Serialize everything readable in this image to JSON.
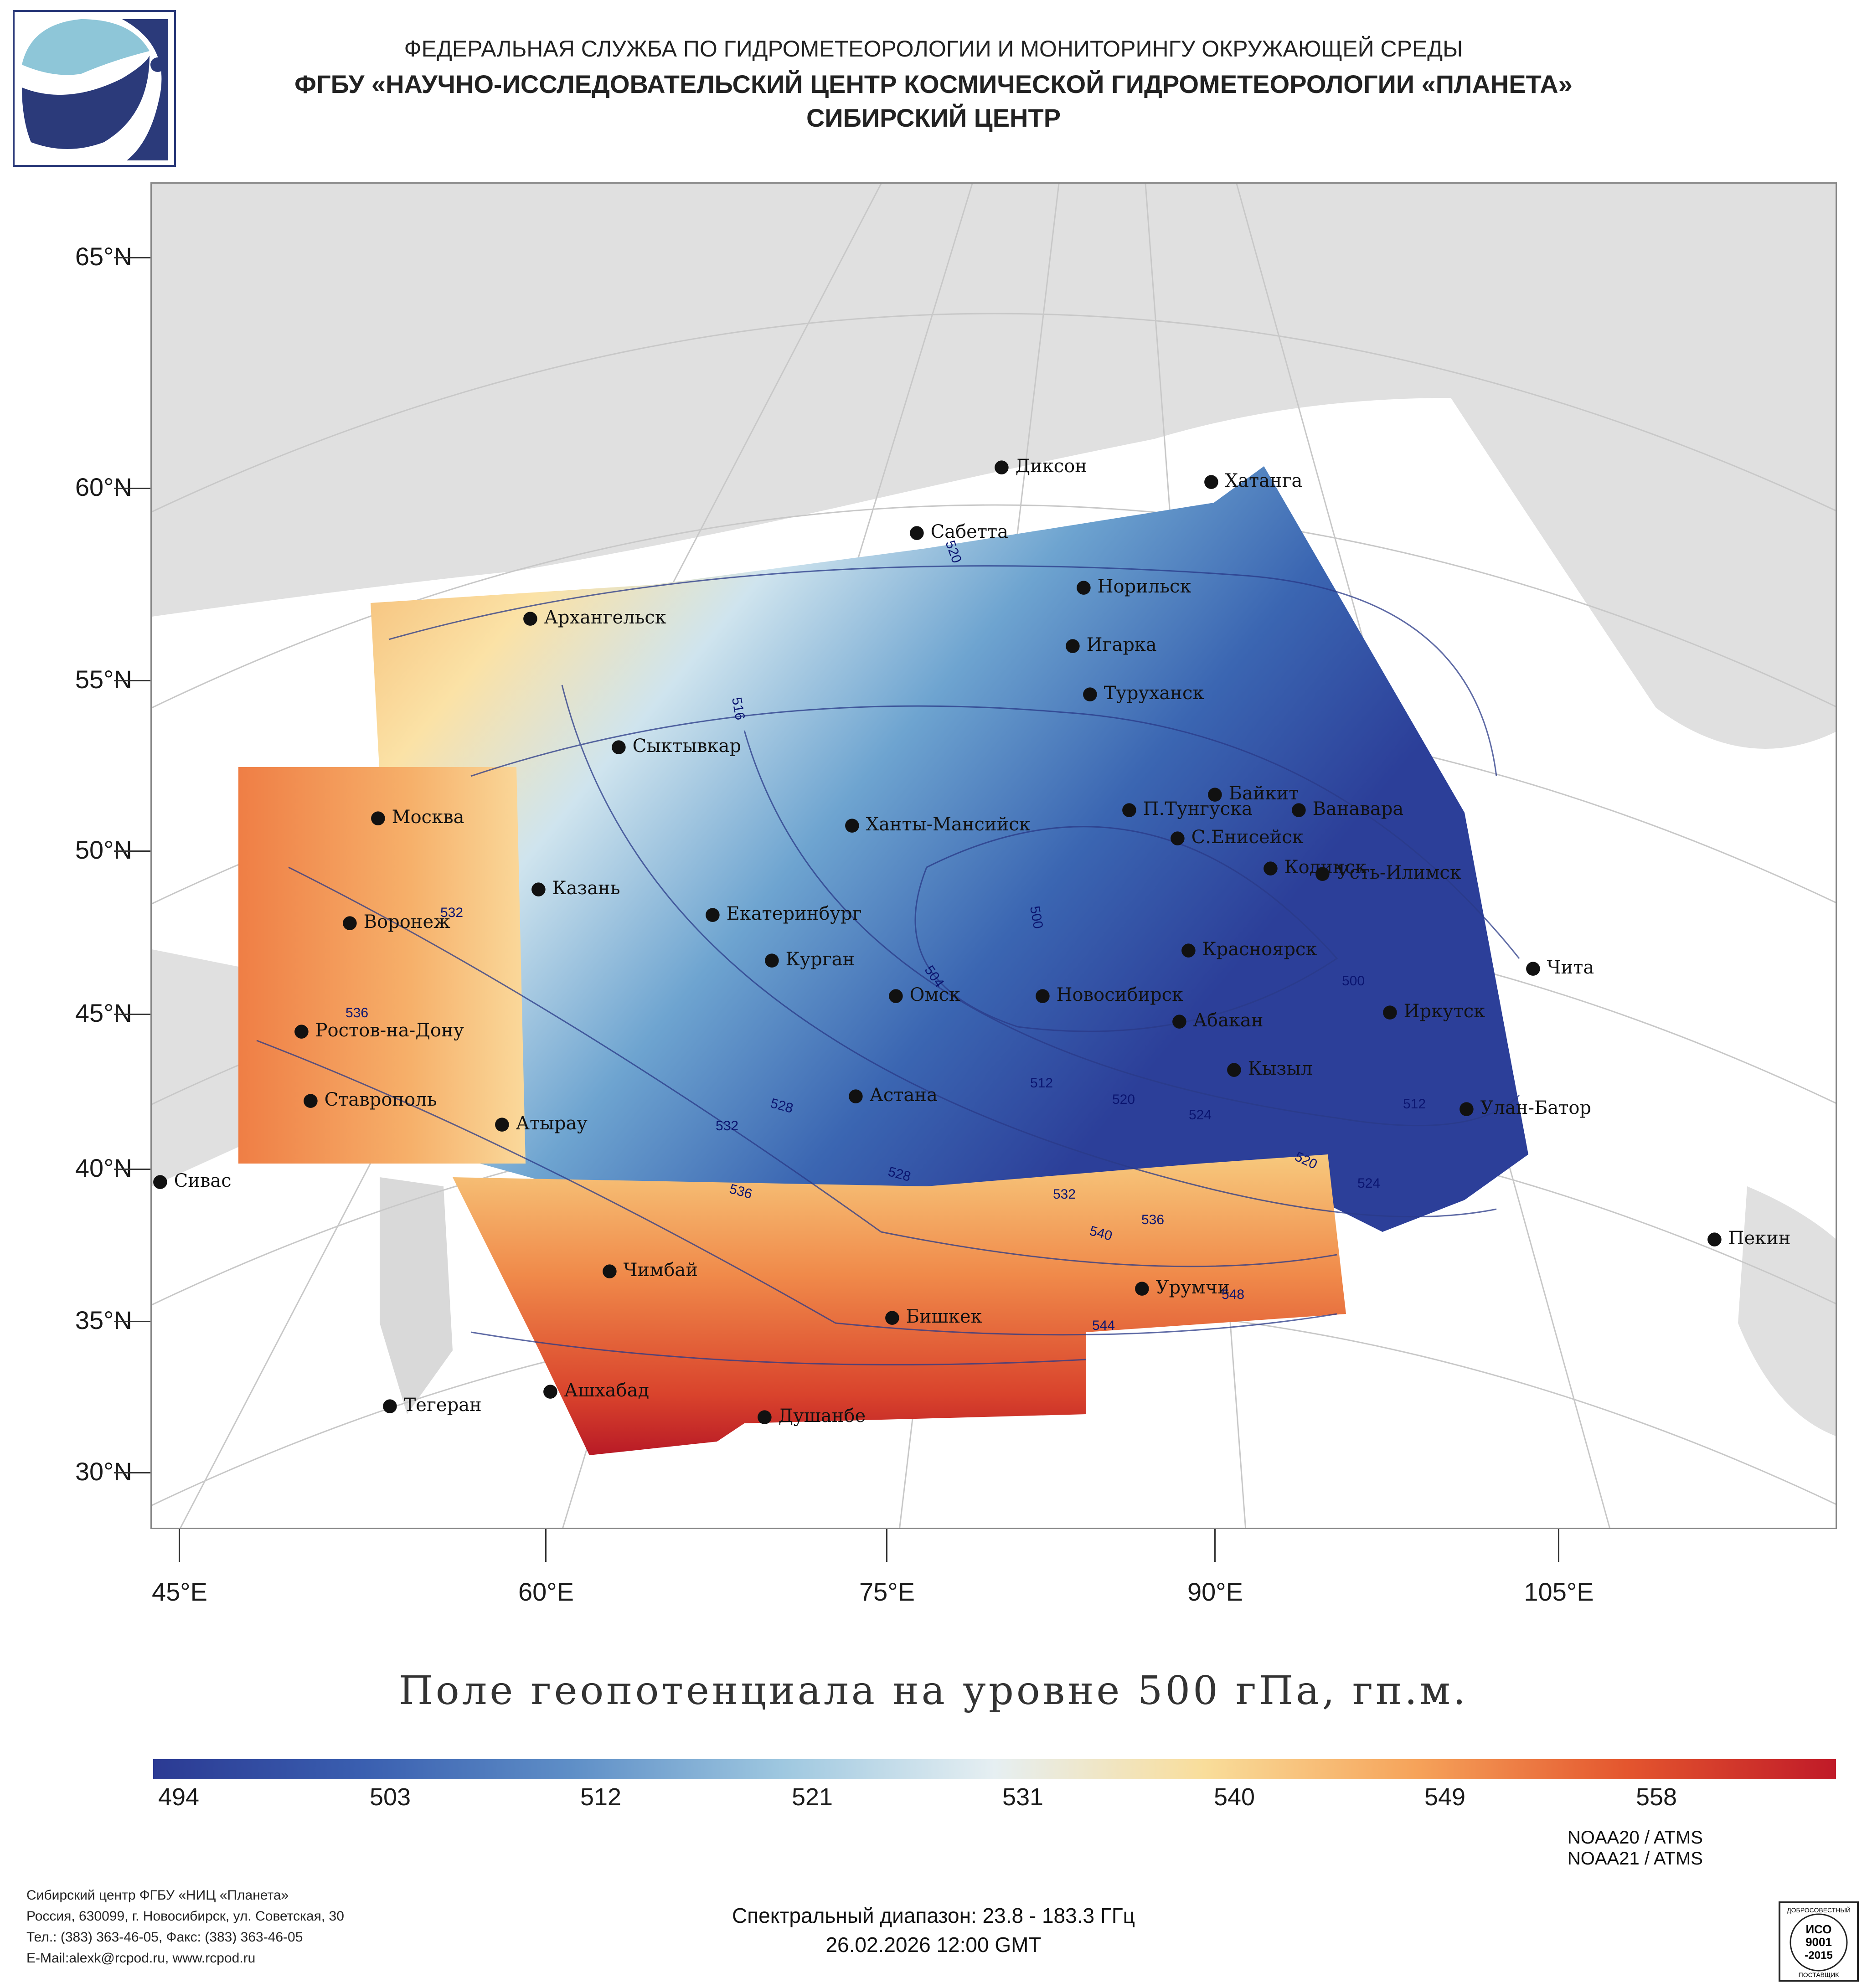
{
  "header": {
    "agency": "ФЕДЕРАЛЬНАЯ СЛУЖБА ПО ГИДРОМЕТЕОРОЛОГИИ И МОНИТОРИНГУ ОКРУЖАЮЩЕЙ СРЕДЫ",
    "institute": "ФГБУ «НАУЧНО-ИССЛЕДОВАТЕЛЬСКИЙ ЦЕНТР КОСМИЧЕСКОЙ ГИДРОМЕТЕОРОЛОГИИ «ПЛАНЕТА»",
    "center": "СИБИРСКИЙ ЦЕНТР"
  },
  "logo": {
    "name": "planeta-logo"
  },
  "map": {
    "lat_labels": [
      "65°N",
      "60°N",
      "55°N",
      "50°N",
      "45°N",
      "40°N",
      "35°N",
      "30°N"
    ],
    "lon_labels": [
      "45°E",
      "60°E",
      "75°E",
      "90°E",
      "105°E"
    ],
    "cities": [
      "Диксон",
      "Хатанга",
      "Сабетта",
      "Норильск",
      "Архангельск",
      "Игарка",
      "Туруханск",
      "Сыктывкар",
      "Байкит",
      "Москва",
      "П.Тунгуска",
      "Ванавара",
      "Ханты-Мансийск",
      "С.Енисейск",
      "Кодинск",
      "Усть-Илимск",
      "Казань",
      "Екатеринбург",
      "Воронеж",
      "Красноярск",
      "Курган",
      "Чита",
      "Омск",
      "Новосибирск",
      "Иркутск",
      "Ростов-на-Дону",
      "Абакан",
      "Кызыл",
      "Астана",
      "Ставрополь",
      "Улан-Батор",
      "Атырау",
      "Сивас",
      "Чимбай",
      "Пекин",
      "Урумчи",
      "Бишкек",
      "Ашхабад",
      "Тегеран",
      "Душанбе"
    ],
    "contour_labels": [
      "520",
      "516",
      "532",
      "536",
      "500",
      "504",
      "500",
      "512",
      "528",
      "532",
      "520",
      "524",
      "512",
      "528",
      "536",
      "532",
      "520",
      "524",
      "540",
      "536",
      "548",
      "544"
    ]
  },
  "title": "Поле геопотенциала на уровне 500 гПа, гп.м.",
  "colorbar": {
    "labels": [
      "494",
      "503",
      "512",
      "521",
      "531",
      "540",
      "549",
      "558"
    ],
    "stops": [
      "#2b3a93",
      "#3a5fb0",
      "#5f8fc7",
      "#9fc8e0",
      "#e6eff2",
      "#f9dd9a",
      "#f6a35a",
      "#e4562e",
      "#c01a28"
    ]
  },
  "footer": {
    "org_lines": [
      "Сибирский центр ФГБУ «НИЦ «Планета»",
      "Россия, 630099, г. Новосибирск, ул. Советская, 30",
      "Тел.: (383) 363-46-05, Факс: (383) 363-46-05",
      "E-Mail:alexk@rcpod.ru, www.rcpod.ru"
    ],
    "satellites": [
      "NOAA20 / ATMS",
      "NOAA21 / ATMS"
    ],
    "spectral": "Спектральный диапазон: 23.8 - 183.3 ГГц",
    "datetime": "26.02.2026 12:00 GMT",
    "iso_text": [
      "ДОБРОСОВЕСТНЫЙ",
      "ИСО",
      "9001",
      "-2015",
      "ПОСТАВЩИК"
    ]
  }
}
